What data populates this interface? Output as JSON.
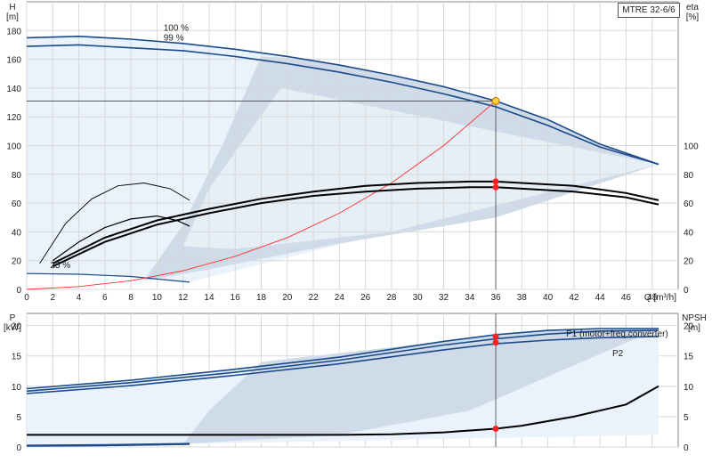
{
  "model": "MTRE 32-6/6",
  "chart_data": [
    {
      "type": "line",
      "panel": "head",
      "ylabel_left": "H",
      "yunit_left": "[m]",
      "ylabel_right": "eta",
      "yunit_right": "[%]",
      "xlabel": "Q [m³/h]",
      "xlim": [
        0,
        50
      ],
      "ylim": [
        0,
        200
      ],
      "eta_lim": [
        0,
        200
      ],
      "grid": true,
      "x_ticks": [
        0,
        2,
        4,
        6,
        8,
        10,
        12,
        14,
        16,
        18,
        20,
        22,
        24,
        26,
        28,
        30,
        32,
        34,
        36,
        38,
        40,
        42,
        44,
        46,
        48
      ],
      "y_ticks": [
        0,
        20,
        40,
        60,
        80,
        100,
        120,
        140,
        160,
        180
      ],
      "eta_ticks": [
        0,
        20,
        40,
        60,
        80,
        100
      ],
      "curve_labels": [
        {
          "text": "100 %",
          "x": 10.5,
          "y": 180
        },
        {
          "text": "99 %",
          "x": 10.5,
          "y": 173
        },
        {
          "text": "25 %",
          "x": 1.8,
          "y": 15
        }
      ],
      "series": [
        {
          "role": "head_100",
          "color": "#1a4a8a",
          "x": [
            0,
            4,
            8,
            12,
            16,
            20,
            24,
            28,
            32,
            36,
            40,
            44,
            48.5
          ],
          "y": [
            175,
            176,
            174,
            171,
            167,
            162,
            156,
            149,
            141,
            131,
            118,
            101,
            87
          ]
        },
        {
          "role": "head_99",
          "color": "#1a4a8a",
          "x": [
            0,
            4,
            8,
            12,
            16,
            20,
            24,
            28,
            32,
            36,
            40,
            44,
            48.5
          ],
          "y": [
            169,
            170,
            168,
            166,
            162,
            157,
            151,
            144,
            136,
            127,
            114,
            99,
            87
          ]
        },
        {
          "role": "head_25",
          "color": "#1a4a8a",
          "x": [
            0,
            4,
            8,
            12.5
          ],
          "y": [
            11,
            10.5,
            9,
            5
          ]
        },
        {
          "role": "system_curve",
          "color": "#ff3030",
          "x": [
            0,
            4,
            8,
            12,
            16,
            20,
            24,
            28,
            32,
            36
          ],
          "y": [
            0,
            2,
            6,
            13,
            23,
            36,
            53,
            74,
            100,
            131
          ]
        },
        {
          "role": "eta_100",
          "color": "#000000",
          "x": [
            2,
            6,
            10,
            14,
            18,
            22,
            26,
            30,
            34,
            36,
            38,
            42,
            46,
            48.5
          ],
          "y": [
            18,
            36,
            48,
            56,
            63,
            68,
            72,
            74,
            75,
            75,
            74,
            72,
            67,
            62
          ]
        },
        {
          "role": "eta_99",
          "color": "#000000",
          "x": [
            2,
            6,
            10,
            14,
            18,
            22,
            26,
            30,
            34,
            36,
            38,
            42,
            46,
            48.5
          ],
          "y": [
            16,
            33,
            45,
            53,
            60,
            65,
            68,
            70,
            71,
            71,
            70,
            68,
            64,
            59
          ]
        },
        {
          "role": "eta_part_1",
          "color": "#000000",
          "x": [
            1,
            3,
            5,
            7,
            9,
            11,
            12.5
          ],
          "y": [
            18,
            46,
            63,
            72,
            74,
            70,
            62
          ]
        },
        {
          "role": "eta_part_2",
          "color": "#000000",
          "x": [
            2,
            4,
            6,
            8,
            10,
            11.5,
            12.5
          ],
          "y": [
            20,
            33,
            43,
            49,
            51,
            48,
            44
          ]
        }
      ],
      "duty_point": {
        "x": 36,
        "y": 131
      },
      "eta_markers": [
        {
          "x": 36,
          "y": 75
        },
        {
          "x": 36,
          "y": 71
        }
      ]
    },
    {
      "type": "line",
      "panel": "power",
      "ylabel_left": "P",
      "yunit_left": "[kW]",
      "ylabel_right": "NPSH",
      "yunit_right": "[m]",
      "xlim": [
        0,
        50
      ],
      "ylim": [
        0,
        22
      ],
      "y_ticks": [
        0,
        5,
        10,
        15,
        20
      ],
      "grid": true,
      "series": [
        {
          "name": "P1 (motor+freq.converter)",
          "color": "#1a4a8a",
          "x": [
            0,
            8,
            16,
            24,
            32,
            36,
            40,
            44,
            48.5
          ],
          "y": [
            9.6,
            11,
            12.8,
            14.8,
            17.4,
            18.5,
            19.2,
            19.5,
            19.5
          ]
        },
        {
          "role": "p1_99",
          "color": "#1a4a8a",
          "x": [
            0,
            8,
            16,
            24,
            32,
            36,
            40,
            44,
            48.5
          ],
          "y": [
            9.2,
            10.6,
            12.3,
            14.3,
            16.8,
            17.8,
            18.6,
            19.1,
            19.2
          ]
        },
        {
          "name": "P2",
          "color": "#1a4a8a",
          "x": [
            0,
            8,
            16,
            24,
            32,
            36,
            40,
            44,
            48.5
          ],
          "y": [
            8.8,
            10.1,
            11.8,
            13.7,
            16.0,
            17.0,
            17.6,
            18.0,
            18.2
          ]
        },
        {
          "role": "p_low_speed",
          "color": "#1a4a8a",
          "x": [
            0,
            6,
            12.5
          ],
          "y": [
            0.2,
            0.3,
            0.5
          ]
        },
        {
          "role": "npsh",
          "color": "#000000",
          "x": [
            0,
            8,
            16,
            24,
            28,
            32,
            36,
            38,
            42,
            46,
            48.5
          ],
          "y": [
            2,
            2,
            2,
            2,
            2.1,
            2.4,
            3,
            3.5,
            5,
            7,
            10
          ]
        }
      ],
      "markers": [
        {
          "x": 36,
          "y": 18.2
        },
        {
          "x": 36,
          "y": 17.2
        },
        {
          "x": 36,
          "y": 3
        }
      ]
    }
  ]
}
